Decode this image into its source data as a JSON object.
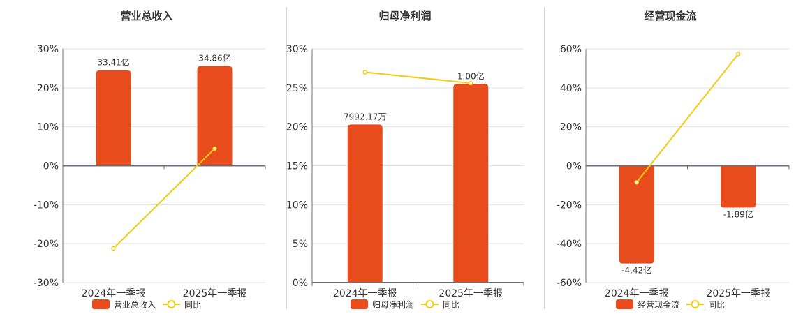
{
  "colors": {
    "bar": "#E84C1D",
    "line": "#F2CB13",
    "grid": "#DDE3EE",
    "axis": "#6E7079",
    "text": "#333333",
    "divider": "#AAAAAA"
  },
  "chart_data": [
    {
      "type": "bar+line",
      "title": "营业总收入",
      "categories": [
        "2024年一季报",
        "2025年一季报"
      ],
      "ylim": [
        -30,
        30
      ],
      "yticks": [
        -30,
        -20,
        -10,
        0,
        10,
        20,
        30
      ],
      "ytick_labels": [
        "-30%",
        "-20%",
        "-10%",
        "0%",
        "10%",
        "20%",
        "30%"
      ],
      "bar_name": "营业总收入",
      "bar_scaled_values": [
        24.5,
        25.6
      ],
      "bar_labels": [
        "33.41亿",
        "34.86亿"
      ],
      "line_name": "同比",
      "line_values": [
        -21.2,
        4.4
      ]
    },
    {
      "type": "bar+line",
      "title": "归母净利润",
      "categories": [
        "2024年一季报",
        "2025年一季报"
      ],
      "ylim": [
        0,
        30
      ],
      "yticks": [
        0,
        5,
        10,
        15,
        20,
        25,
        30
      ],
      "ytick_labels": [
        "0%",
        "5%",
        "10%",
        "15%",
        "20%",
        "25%",
        "30%"
      ],
      "bar_name": "归母净利润",
      "bar_scaled_values": [
        20.3,
        25.5
      ],
      "bar_labels": [
        "7992.17万",
        "1.00亿"
      ],
      "line_name": "同比",
      "line_values": [
        27.0,
        25.6
      ]
    },
    {
      "type": "bar+line",
      "title": "经营现金流",
      "categories": [
        "2024年一季报",
        "2025年一季报"
      ],
      "ylim": [
        -60,
        60
      ],
      "yticks": [
        -60,
        -40,
        -20,
        0,
        20,
        40,
        60
      ],
      "ytick_labels": [
        "-60%",
        "-40%",
        "-20%",
        "0%",
        "20%",
        "40%",
        "60%"
      ],
      "bar_name": "经营现金流",
      "bar_scaled_values": [
        -50.2,
        -21.5
      ],
      "bar_labels": [
        "-4.42亿",
        "-1.89亿"
      ],
      "line_name": "同比",
      "line_values": [
        -8.5,
        57.3
      ]
    }
  ]
}
